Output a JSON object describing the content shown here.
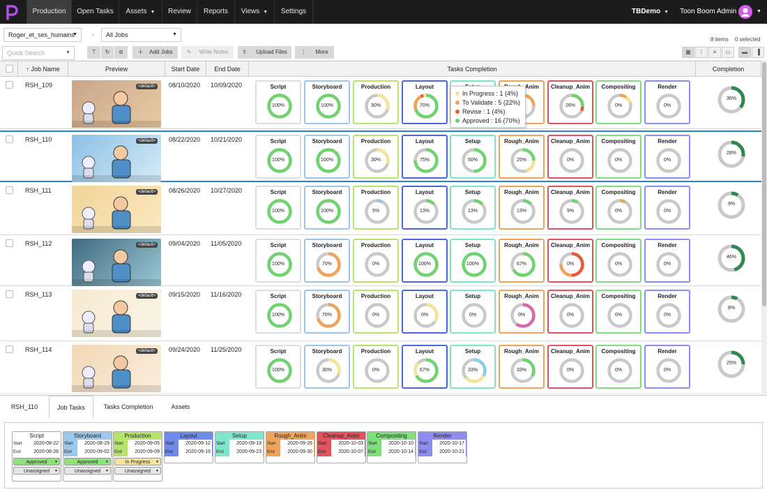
{
  "nav": {
    "items": [
      "Production",
      "Open Tasks",
      "Assets",
      "Review",
      "Reports",
      "Views",
      "Settings"
    ],
    "active": "Production",
    "project": "TBDemo",
    "user": "Toon Boom Admin"
  },
  "filters": {
    "project": "Roger_et_ses_humains",
    "jobs": "All Jobs",
    "search_placeholder": "Quick Search",
    "items_count": "8 items",
    "selected_count": "0 selected"
  },
  "toolbar": {
    "add_jobs": "Add Jobs",
    "write_notes": "Write Notes",
    "upload_files": "Upload Files",
    "more": "More"
  },
  "columns": {
    "job_name": "Job Name",
    "preview": "Preview",
    "start_date": "Start Date",
    "end_date": "End Date",
    "tasks_completion": "Tasks Completion",
    "completion": "Completion"
  },
  "task_names": [
    "Script",
    "Storyboard",
    "Production",
    "Layout",
    "Setup",
    "Rough_Anim",
    "Cleanup_Anim",
    "Compositing",
    "Render"
  ],
  "task_colors": [
    "#dddddd",
    "#9cc8ee",
    "#b6e36a",
    "#4b66e0",
    "#7ee6cb",
    "#f0a35a",
    "#e2535e",
    "#7ee07a",
    "#8f8cf0"
  ],
  "status_colors": {
    "approved": "#6fd36f",
    "to_validate": "#f0a35a",
    "in_progress": "#f5e39a",
    "revise": "#e35b3b",
    "other": "#c9c9c9",
    "ring": "#c9c9c9"
  },
  "rows": [
    {
      "name": "RSH_109",
      "tag": "<default>",
      "start": "08/10/2020",
      "end": "10/09/2020",
      "completion": "36%",
      "completion_value": 36,
      "tasks": [
        {
          "p": "100%",
          "s": [
            [
              100,
              "approved"
            ]
          ]
        },
        {
          "p": "100%",
          "s": [
            [
              100,
              "approved"
            ]
          ]
        },
        {
          "p": "30%",
          "s": [
            [
              30,
              "in_progress"
            ]
          ]
        },
        {
          "p": "70%",
          "s": [
            [
              70,
              "approved"
            ],
            [
              22,
              "to_validate"
            ],
            [
              4,
              "revise"
            ],
            [
              4,
              "in_progress"
            ]
          ]
        },
        {
          "p": "",
          "s": []
        },
        {
          "p": "",
          "s": [
            [
              25,
              "to_validate"
            ]
          ]
        },
        {
          "p": "26%",
          "s": [
            [
              26,
              "approved"
            ],
            [
              6,
              "revise"
            ]
          ]
        },
        {
          "p": "0%",
          "s": [
            [
              10,
              "to_validate"
            ],
            [
              10,
              "in_progress"
            ]
          ]
        },
        {
          "p": "0%",
          "s": []
        }
      ]
    },
    {
      "name": "RSH_110",
      "tag": "<default>",
      "start": "08/22/2020",
      "end": "10/21/2020",
      "completion": "28%",
      "completion_value": 28,
      "selected": true,
      "tasks": [
        {
          "p": "100%",
          "s": [
            [
              100,
              "approved"
            ]
          ]
        },
        {
          "p": "100%",
          "s": [
            [
              100,
              "approved"
            ]
          ]
        },
        {
          "p": "30%",
          "s": [
            [
              30,
              "in_progress"
            ]
          ]
        },
        {
          "p": "75%",
          "s": [
            [
              75,
              "approved"
            ]
          ]
        },
        {
          "p": "50%",
          "s": [
            [
              50,
              "approved"
            ]
          ]
        },
        {
          "p": "25%",
          "s": [
            [
              25,
              "approved"
            ],
            [
              20,
              "in_progress"
            ]
          ]
        },
        {
          "p": "0%",
          "s": []
        },
        {
          "p": "0%",
          "s": []
        },
        {
          "p": "0%",
          "s": []
        }
      ]
    },
    {
      "name": "RSH_111",
      "tag": "<default>",
      "start": "08/26/2020",
      "end": "10/27/2020",
      "completion": "9%",
      "completion_value": 9,
      "tasks": [
        {
          "p": "100%",
          "s": [
            [
              100,
              "approved"
            ]
          ]
        },
        {
          "p": "100%",
          "s": [
            [
              100,
              "approved"
            ]
          ]
        },
        {
          "p": "5%",
          "s": [
            [
              8,
              "other_blue"
            ]
          ]
        },
        {
          "p": "13%",
          "s": [
            [
              13,
              "approved"
            ]
          ]
        },
        {
          "p": "13%",
          "s": [
            [
              13,
              "approved"
            ]
          ]
        },
        {
          "p": "13%",
          "s": [
            [
              13,
              "approved"
            ]
          ]
        },
        {
          "p": "9%",
          "s": [
            [
              9,
              "approved"
            ]
          ]
        },
        {
          "p": "0%",
          "s": [
            [
              8,
              "to_validate"
            ]
          ]
        },
        {
          "p": "0%",
          "s": []
        }
      ]
    },
    {
      "name": "RSH_112",
      "tag": "<default>",
      "start": "09/04/2020",
      "end": "11/05/2020",
      "completion": "46%",
      "completion_value": 46,
      "tasks": [
        {
          "p": "100%",
          "s": [
            [
              100,
              "approved"
            ]
          ]
        },
        {
          "p": "70%",
          "s": [
            [
              70,
              "to_validate"
            ]
          ]
        },
        {
          "p": "0%",
          "s": []
        },
        {
          "p": "100%",
          "s": [
            [
              100,
              "approved"
            ]
          ]
        },
        {
          "p": "100%",
          "s": [
            [
              100,
              "approved"
            ]
          ]
        },
        {
          "p": "67%",
          "s": [
            [
              67,
              "approved"
            ]
          ]
        },
        {
          "p": "0%",
          "s": [
            [
              50,
              "revise"
            ],
            [
              25,
              "to_validate"
            ]
          ]
        },
        {
          "p": "0%",
          "s": []
        },
        {
          "p": "0%",
          "s": []
        }
      ]
    },
    {
      "name": "RSH_113",
      "tag": "<default>",
      "start": "09/15/2020",
      "end": "11/16/2020",
      "completion": "8%",
      "completion_value": 8,
      "tasks": [
        {
          "p": "100%",
          "s": [
            [
              100,
              "approved"
            ]
          ]
        },
        {
          "p": "70%",
          "s": [
            [
              70,
              "to_validate"
            ]
          ]
        },
        {
          "p": "0%",
          "s": []
        },
        {
          "p": "0%",
          "s": [
            [
              35,
              "in_progress"
            ]
          ]
        },
        {
          "p": "0%",
          "s": []
        },
        {
          "p": "0%",
          "s": [
            [
              60,
              "pink"
            ]
          ]
        },
        {
          "p": "0%",
          "s": []
        },
        {
          "p": "0%",
          "s": []
        },
        {
          "p": "0%",
          "s": []
        }
      ]
    },
    {
      "name": "RSH_114",
      "tag": "<default>",
      "start": "09/24/2020",
      "end": "11/25/2020",
      "completion": "25%",
      "completion_value": 25,
      "tasks": [
        {
          "p": "100%",
          "s": [
            [
              100,
              "approved"
            ]
          ]
        },
        {
          "p": "30%",
          "s": [
            [
              30,
              "in_progress"
            ]
          ]
        },
        {
          "p": "0%",
          "s": []
        },
        {
          "p": "67%",
          "s": [
            [
              67,
              "approved"
            ],
            [
              20,
              "in_progress"
            ]
          ]
        },
        {
          "p": "33%",
          "s": [
            [
              33,
              "other_blue"
            ],
            [
              30,
              "in_progress"
            ]
          ]
        },
        {
          "p": "33%",
          "s": [
            [
              33,
              "approved"
            ]
          ]
        },
        {
          "p": "0%",
          "s": []
        },
        {
          "p": "0%",
          "s": []
        },
        {
          "p": "0%",
          "s": []
        }
      ]
    }
  ],
  "tooltip": [
    {
      "text": "In Progress : 1 (4%)",
      "color": "#f5e39a"
    },
    {
      "text": "To Validate : 5 (22%)",
      "color": "#f0a35a"
    },
    {
      "text": "Revise : 1 (4%)",
      "color": "#e35b3b"
    },
    {
      "text": "Approved : 16 (70%)",
      "color": "#6fd36f"
    }
  ],
  "bottom": {
    "tabs": [
      "RSH_110",
      "Job Tasks",
      "Tasks Completion",
      "Assets"
    ],
    "active": "Job Tasks",
    "tasks": [
      {
        "name": "Script",
        "start": "2020-08-22",
        "end": "2020-08-26",
        "status": "Approved",
        "assignee": "Unassigned"
      },
      {
        "name": "Storyboard",
        "start": "2020-08-29",
        "end": "2020-09-02",
        "status": "Approved",
        "assignee": "Unassigned"
      },
      {
        "name": "Production",
        "start": "2020-09-05",
        "end": "2020-09-09",
        "status": "In Progress",
        "assignee": "Unassigned"
      },
      {
        "name": "Layout",
        "start": "2020-09-12",
        "end": "2020-09-16"
      },
      {
        "name": "Setup",
        "start": "2020-09-19",
        "end": "2020-09-23"
      },
      {
        "name": "Rough_Anim",
        "start": "2020-09-26",
        "end": "2020-09-30"
      },
      {
        "name": "Cleanup_Anim",
        "start": "2020-10-03",
        "end": "2020-10-07"
      },
      {
        "name": "Compositing",
        "start": "2020-10-10",
        "end": "2020-10-14"
      },
      {
        "name": "Render",
        "start": "2020-10-17",
        "end": "2020-10-21"
      }
    ],
    "start_label": "Start",
    "end_label": "End"
  }
}
